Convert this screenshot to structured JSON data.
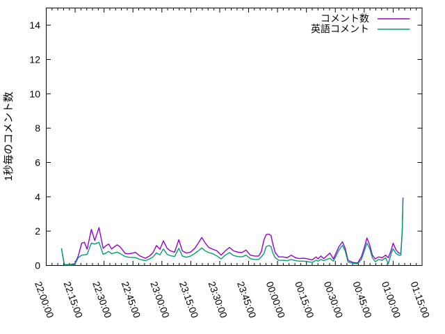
{
  "chart_data": {
    "type": "line",
    "title": "",
    "xlabel": "",
    "ylabel": "1秒毎のコメント数",
    "ylim": [
      0,
      15
    ],
    "yticks": [
      0,
      2,
      4,
      6,
      8,
      10,
      12,
      14
    ],
    "xtick_labels": [
      "22:00:00",
      "22:15:00",
      "22:30:00",
      "22:45:00",
      "23:00:00",
      "23:15:00",
      "23:30:00",
      "23:45:00",
      "00:00:00",
      "00:15:00",
      "00:30:00",
      "00:45:00",
      "01:00:00",
      "01:15:00"
    ],
    "x_axis_start_time": "22:00:00",
    "x_axis_end_time": "01:15:00",
    "x_major_tick_interval_minutes": 15,
    "x_minor_tick_interval_minutes": 3,
    "x_label_rotation_deg": 70,
    "grid": false,
    "legend_position": "top-right-inside",
    "x_minutes_from_start": [
      7.9,
      8.6,
      9.4,
      12.2,
      14.8,
      16.6,
      18.4,
      19.8,
      21.2,
      23.4,
      25.2,
      27.4,
      29.5,
      31.0,
      32.4,
      33.9,
      36.7,
      38.2,
      41.0,
      43.0,
      46.4,
      48.6,
      51.5,
      53.6,
      55.4,
      57.2,
      59.0,
      60.8,
      62.7,
      64.4,
      66.6,
      68.8,
      70.6,
      72.7,
      74.9,
      77.1,
      78.9,
      80.7,
      82.5,
      84.3,
      86.4,
      88.6,
      90.7,
      92.9,
      95.1,
      97.2,
      99.4,
      101.5,
      103.7,
      105.9,
      108.0,
      110.2,
      111.6,
      113.0,
      114.1,
      115.5,
      116.6,
      117.7,
      118.8,
      120.6,
      122.8,
      125.0,
      127.1,
      129.3,
      131.4,
      133.6,
      135.8,
      137.9,
      140.1,
      141.0,
      142.5,
      144.0,
      147.2,
      149.0,
      151.9,
      153.7,
      155.1,
      156.6,
      159.1,
      161.6,
      163.5,
      164.9,
      166.4,
      167.8,
      169.2,
      170.7,
      172.5,
      174.3,
      176.1,
      177.5,
      179.0,
      180.0,
      181.5,
      182.9,
      184.0,
      184.7,
      185.1
    ],
    "series": [
      {
        "name": "コメント数",
        "color": "#9400d3",
        "values": [
          1.0,
          0.55,
          0.05,
          0.05,
          0.1,
          0.55,
          1.3,
          1.35,
          0.95,
          2.1,
          1.45,
          2.2,
          1.0,
          1.15,
          1.25,
          0.96,
          1.2,
          1.1,
          0.7,
          0.68,
          0.76,
          0.55,
          0.42,
          0.55,
          0.75,
          1.16,
          0.95,
          1.43,
          1.0,
          0.85,
          0.78,
          1.5,
          0.85,
          0.72,
          0.78,
          1.0,
          1.3,
          1.63,
          1.3,
          1.05,
          0.95,
          0.85,
          0.6,
          0.85,
          1.05,
          0.85,
          0.78,
          0.75,
          0.9,
          0.6,
          0.55,
          0.55,
          0.8,
          1.5,
          1.8,
          1.83,
          1.75,
          1.2,
          0.75,
          0.5,
          0.5,
          0.45,
          0.6,
          0.45,
          0.4,
          0.42,
          0.38,
          0.32,
          0.5,
          0.38,
          0.55,
          0.4,
          0.72,
          0.38,
          1.1,
          1.38,
          1.0,
          0.3,
          0.18,
          0.15,
          0.5,
          1.0,
          1.6,
          1.2,
          0.6,
          0.38,
          0.5,
          0.45,
          0.6,
          0.45,
          0.9,
          1.3,
          0.9,
          0.72,
          0.7,
          2.0,
          3.95
        ]
      },
      {
        "name": "英語コメント",
        "color": "#009e73",
        "values": [
          1.0,
          0.55,
          0.03,
          0.03,
          0.05,
          0.45,
          0.6,
          0.62,
          0.65,
          1.3,
          1.25,
          1.35,
          0.65,
          0.72,
          0.82,
          0.68,
          0.78,
          0.7,
          0.52,
          0.48,
          0.46,
          0.35,
          0.28,
          0.38,
          0.5,
          0.73,
          0.62,
          0.96,
          0.65,
          0.57,
          0.52,
          1.0,
          0.55,
          0.48,
          0.55,
          0.7,
          0.85,
          1.02,
          0.85,
          0.75,
          0.68,
          0.55,
          0.38,
          0.6,
          0.75,
          0.58,
          0.52,
          0.5,
          0.6,
          0.4,
          0.35,
          0.35,
          0.5,
          0.7,
          1.1,
          1.16,
          1.1,
          0.7,
          0.45,
          0.3,
          0.3,
          0.28,
          0.35,
          0.28,
          0.25,
          0.25,
          0.22,
          0.18,
          0.3,
          0.25,
          0.35,
          0.28,
          0.42,
          0.25,
          0.9,
          1.17,
          0.85,
          0.2,
          0.12,
          0.1,
          0.35,
          0.8,
          1.3,
          1.0,
          0.45,
          0.22,
          0.35,
          0.3,
          0.45,
          0.1,
          0.7,
          0.97,
          0.7,
          0.6,
          0.6,
          2.0,
          3.95
        ]
      }
    ],
    "axis_color": "#000000",
    "background_color": "#ffffff"
  }
}
